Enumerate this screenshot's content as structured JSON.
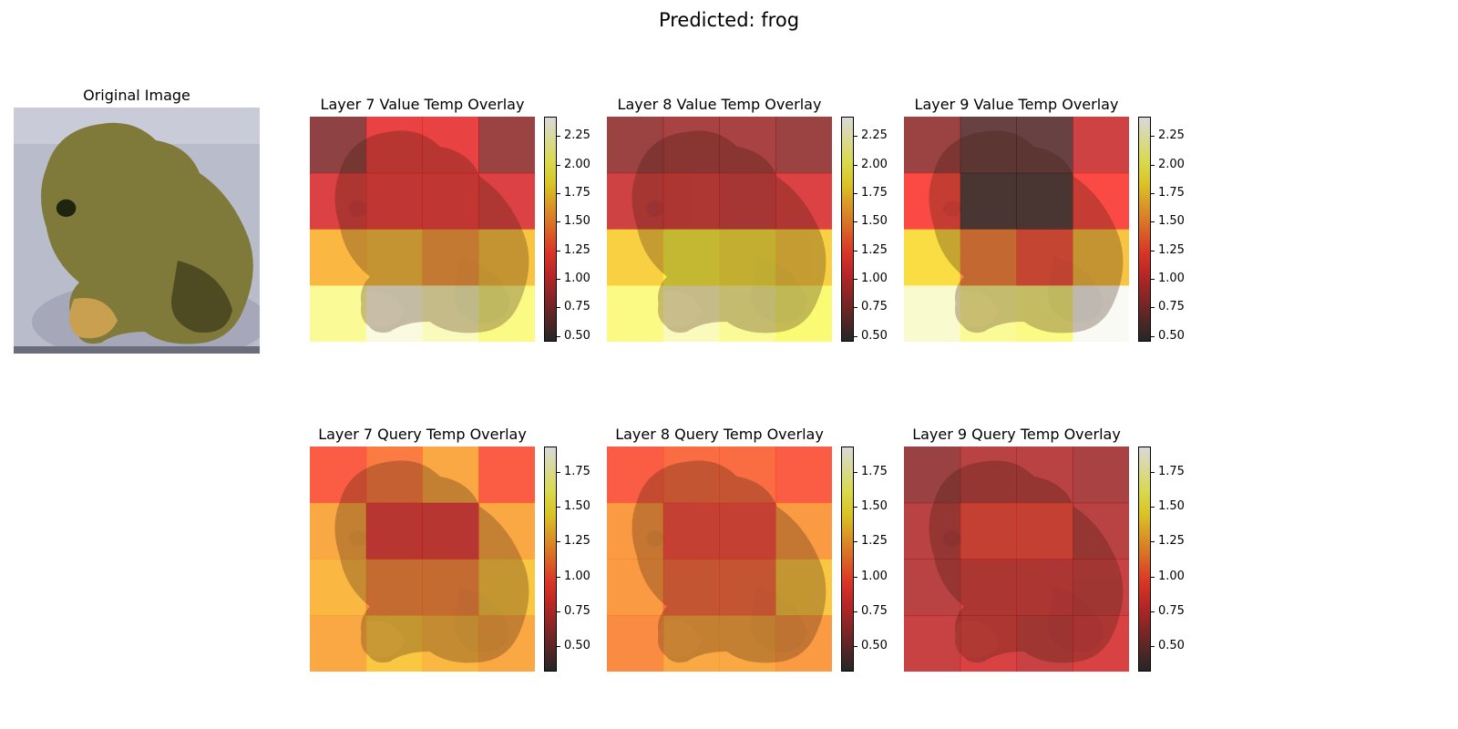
{
  "chart_data": {
    "type": "heatmap",
    "suptitle": "Predicted: frog",
    "original": {
      "title": "Original Image"
    },
    "colormap": "hot",
    "panels": [
      {
        "title": "Layer 7 Value Temp Overlay",
        "group": "value",
        "grid": [
          [
            0.75,
            1.1,
            1.1,
            0.8
          ],
          [
            1.05,
            1.15,
            1.15,
            1.05
          ],
          [
            1.65,
            1.7,
            1.55,
            1.7
          ],
          [
            2.15,
            2.35,
            2.25,
            2.1
          ]
        ]
      },
      {
        "title": "Layer 8 Value Temp Overlay",
        "group": "value",
        "grid": [
          [
            0.8,
            0.85,
            0.85,
            0.8
          ],
          [
            1.0,
            1.05,
            1.0,
            1.05
          ],
          [
            1.75,
            1.9,
            1.85,
            1.75
          ],
          [
            2.1,
            2.25,
            2.15,
            2.05
          ]
        ]
      },
      {
        "title": "Layer 9 Value Temp Overlay",
        "group": "value",
        "grid": [
          [
            0.8,
            0.6,
            0.6,
            1.0
          ],
          [
            1.2,
            0.5,
            0.5,
            1.2
          ],
          [
            1.8,
            1.45,
            1.25,
            1.7
          ],
          [
            2.3,
            2.15,
            2.1,
            2.4
          ]
        ]
      },
      {
        "title": "Layer 7 Query Temp Overlay",
        "group": "query",
        "grid": [
          [
            1.0,
            1.1,
            1.25,
            1.0
          ],
          [
            1.25,
            0.85,
            0.85,
            1.25
          ],
          [
            1.3,
            1.15,
            1.15,
            1.35
          ],
          [
            1.25,
            1.35,
            1.3,
            1.25
          ]
        ]
      },
      {
        "title": "Layer 8 Query Temp Overlay",
        "group": "query",
        "grid": [
          [
            1.0,
            1.05,
            1.05,
            1.0
          ],
          [
            1.2,
            0.95,
            0.95,
            1.2
          ],
          [
            1.2,
            1.05,
            1.05,
            1.35
          ],
          [
            1.15,
            1.25,
            1.25,
            1.2
          ]
        ]
      },
      {
        "title": "Layer 9 Query Temp Overlay",
        "group": "query",
        "grid": [
          [
            0.6,
            0.7,
            0.7,
            0.65
          ],
          [
            0.7,
            0.95,
            0.95,
            0.7
          ],
          [
            0.7,
            0.8,
            0.8,
            0.75
          ],
          [
            0.75,
            0.8,
            0.75,
            0.8
          ]
        ]
      }
    ],
    "colorbars": {
      "value": {
        "range": [
          0.45,
          2.42
        ],
        "ticks": [
          "0.50",
          "0.75",
          "1.00",
          "1.25",
          "1.50",
          "1.75",
          "2.00",
          "2.25"
        ]
      },
      "query": {
        "range": [
          0.32,
          1.93
        ],
        "ticks": [
          "0.50",
          "0.75",
          "1.00",
          "1.25",
          "1.50",
          "1.75"
        ]
      }
    }
  }
}
